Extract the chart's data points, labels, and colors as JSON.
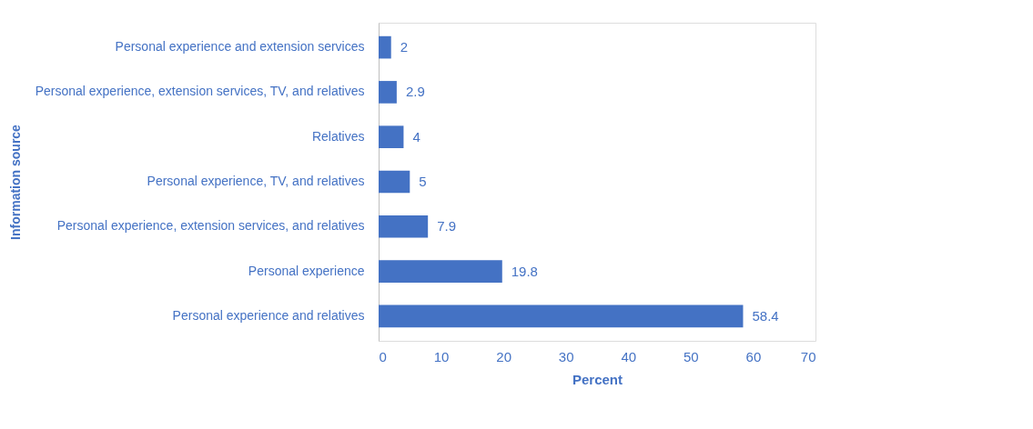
{
  "chart_data": {
    "type": "bar",
    "orientation": "horizontal",
    "xlabel": "Percent",
    "ylabel": "Information source",
    "categories": [
      "Personal experience and extension services",
      "Personal experience, extension services, TV, and relatives",
      "Relatives",
      "Personal experience, TV, and relatives",
      "Personal experience, extension services, and relatives",
      "Personal experience",
      "Personal experience and relatives"
    ],
    "values": [
      2,
      2.9,
      4,
      5,
      7.9,
      19.8,
      58.4
    ],
    "color": "#4472c4",
    "xlim": [
      0,
      70
    ],
    "xticks": [
      0,
      10,
      20,
      30,
      40,
      50,
      60,
      70
    ],
    "grid": false,
    "data_labels": true
  }
}
